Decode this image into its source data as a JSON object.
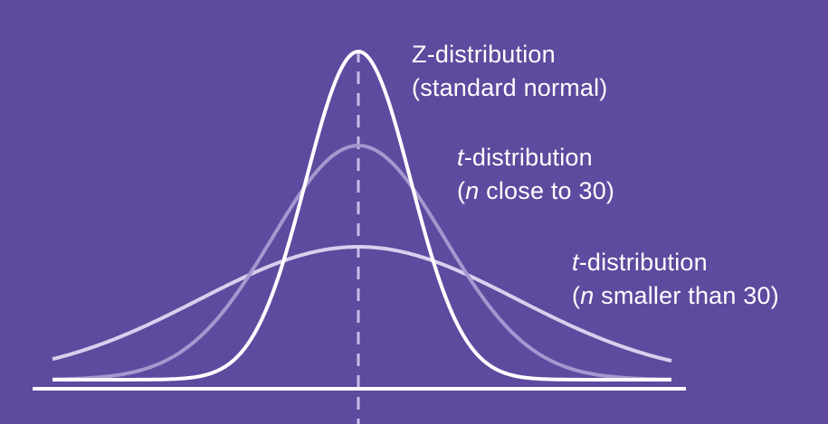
{
  "labels": {
    "z": {
      "line1": "Z-distribution",
      "line2": "(standard normal)"
    },
    "t_close": {
      "prefix": "t",
      "line1_rest": "-distribution",
      "n": "n",
      "line2_rest": " close to 30)"
    },
    "t_small": {
      "prefix": "t",
      "line1_rest": "-distribution",
      "n": "n",
      "line2_rest": " smaller than 30)"
    }
  },
  "colors": {
    "background": "#5e4a9e",
    "z_curve": "#ffffff",
    "t_close_curve": "#a597cf",
    "t_small_curve": "#d8d0ee",
    "axis": "#ffffff",
    "center_line": "#c8bde8"
  }
}
